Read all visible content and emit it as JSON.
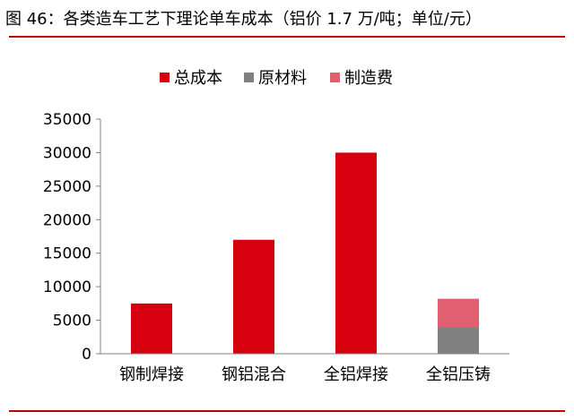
{
  "figure": {
    "title": "图 46：各类造车工艺下理论单车成本（铝价 1.7 万/吨；单位/元）"
  },
  "colors": {
    "rule": "#c00000",
    "total": "#d7000f",
    "material": "#808080",
    "manufacturing": "#e06070"
  },
  "chart_data": {
    "type": "bar",
    "categories": [
      "钢制焊接",
      "钢铝混合",
      "全铝焊接",
      "全铝压铸"
    ],
    "series": [
      {
        "name": "总成本",
        "color": "#d7000f",
        "values": [
          7500,
          17000,
          30000,
          null
        ]
      },
      {
        "name": "原材料",
        "color": "#808080",
        "values": [
          null,
          null,
          null,
          4000
        ],
        "stack": "s"
      },
      {
        "name": "制造费",
        "color": "#e06070",
        "values": [
          null,
          null,
          null,
          4200
        ],
        "stack": "s"
      }
    ],
    "yticks": [
      "0",
      "5000",
      "10000",
      "15000",
      "20000",
      "25000",
      "30000",
      "35000"
    ],
    "ylim": [
      0,
      35000
    ],
    "legend_position": "top-center",
    "grid": false
  }
}
